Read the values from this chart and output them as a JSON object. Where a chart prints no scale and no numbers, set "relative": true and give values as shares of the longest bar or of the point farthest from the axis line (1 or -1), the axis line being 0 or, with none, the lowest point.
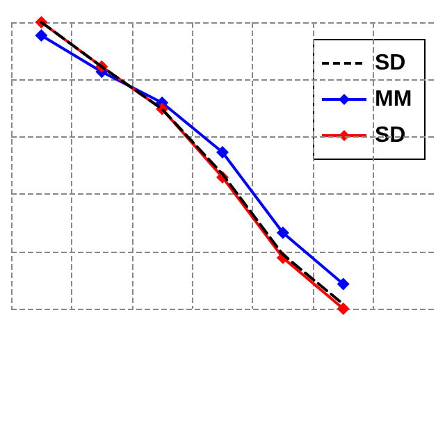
{
  "chart_data": {
    "type": "line",
    "relative": true,
    "grid": true,
    "legend": "top right",
    "categories": [
      null,
      null,
      null,
      null,
      null,
      null,
      null
    ],
    "series": [
      {
        "name": "SD",
        "color": "#000000",
        "line_style": "dashed",
        "marker": "none",
        "values": [
          1,
          0.845,
          0.697,
          0.47,
          0.189,
          0.016,
          null
        ]
      },
      {
        "name": "MM",
        "color": "#0000ff",
        "line_style": "solid",
        "marker": "diamond",
        "values": [
          0.954,
          0.827,
          0.719,
          0.546,
          0.265,
          0.086,
          null
        ]
      },
      {
        "name": "SD",
        "color": "#ff0000",
        "line_style": "solid",
        "marker": "diamond",
        "values": [
          1,
          0.845,
          0.697,
          0.459,
          0.178,
          0,
          null
        ]
      }
    ]
  }
}
